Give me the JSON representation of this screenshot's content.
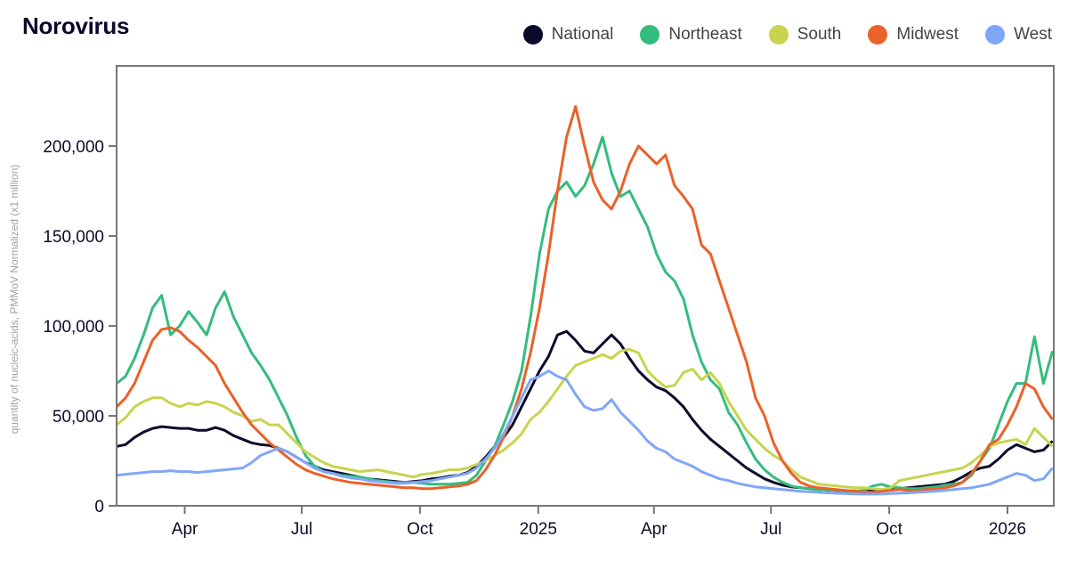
{
  "title": "Norovirus",
  "legend": [
    {
      "name": "National",
      "color": "#0b0a2a"
    },
    {
      "name": "Northeast",
      "color": "#33bd7d"
    },
    {
      "name": "South",
      "color": "#c8d44e"
    },
    {
      "name": "Midwest",
      "color": "#ea6129"
    },
    {
      "name": "West",
      "color": "#7fa7f8"
    }
  ],
  "chart_data": {
    "type": "line",
    "title": "Norovirus",
    "xlabel": "",
    "ylabel": "quantity of nucleic-acids, PMMoV Normalized (x1 million)",
    "xlim": [
      "2024-02-08",
      "2026-02-06"
    ],
    "ylim": [
      0,
      240000
    ],
    "y_ticks": [
      0,
      50000,
      100000,
      150000,
      200000
    ],
    "y_tick_labels": [
      "0",
      "50,000",
      "100,000",
      "150,000",
      "200,000"
    ],
    "x_ticks": [
      "2024-04-01",
      "2024-07-01",
      "2024-10-01",
      "2025-01-01",
      "2025-04-01",
      "2025-07-01",
      "2025-10-01",
      "2026-01-01"
    ],
    "x_tick_labels": [
      "Apr",
      "Jul",
      "Oct",
      "2025",
      "Apr",
      "Jul",
      "Oct",
      "2026"
    ],
    "grid": false,
    "legend_position": "top-right",
    "x_unit": "week starting 2024-02-08, step 7 days",
    "series": [
      {
        "name": "National",
        "color": "#0b0a2a",
        "values": [
          33000,
          34000,
          38000,
          41000,
          43000,
          44000,
          43500,
          43000,
          43000,
          42000,
          42000,
          43500,
          42000,
          39000,
          37000,
          35000,
          34000,
          33500,
          32000,
          30000,
          27000,
          24000,
          22000,
          20000,
          19000,
          18000,
          17000,
          16000,
          15000,
          14500,
          14000,
          13500,
          13000,
          13500,
          14000,
          15000,
          15500,
          16500,
          17000,
          18500,
          22000,
          27000,
          33000,
          38000,
          45000,
          55000,
          65000,
          75000,
          83000,
          95000,
          97000,
          92000,
          86000,
          85000,
          90000,
          95000,
          90000,
          82000,
          75000,
          70000,
          66000,
          64000,
          60000,
          55000,
          48000,
          42000,
          37000,
          33000,
          29000,
          25000,
          21000,
          18000,
          15000,
          13000,
          11500,
          10500,
          10000,
          9500,
          9000,
          8800,
          8500,
          8300,
          8200,
          8000,
          8200,
          8500,
          9000,
          9500,
          10000,
          10500,
          11000,
          11500,
          12000,
          13500,
          16000,
          19000,
          21000,
          22000,
          26000,
          31000,
          34000,
          32000,
          30000,
          31000,
          36000
        ]
      },
      {
        "name": "Northeast",
        "color": "#33bd7d",
        "values": [
          68000,
          72000,
          82000,
          95000,
          110000,
          117000,
          95000,
          100000,
          108000,
          102000,
          95000,
          110000,
          119000,
          105000,
          95000,
          85000,
          78000,
          70000,
          60000,
          50000,
          38000,
          28000,
          22000,
          19000,
          18000,
          17000,
          16500,
          16000,
          15000,
          14000,
          13500,
          13000,
          13000,
          13000,
          12500,
          12000,
          12000,
          12000,
          12500,
          13000,
          17000,
          25000,
          33000,
          45000,
          58000,
          75000,
          105000,
          140000,
          165000,
          175000,
          180000,
          172000,
          178000,
          190000,
          205000,
          185000,
          172000,
          175000,
          165000,
          155000,
          140000,
          130000,
          125000,
          115000,
          95000,
          80000,
          70000,
          65000,
          52000,
          45000,
          35000,
          26000,
          20000,
          16000,
          13000,
          11000,
          10000,
          9500,
          9000,
          8800,
          8500,
          8200,
          8000,
          8500,
          11000,
          12000,
          10500,
          10000,
          9500,
          9500,
          10000,
          10500,
          11500,
          12000,
          13000,
          17000,
          25000,
          32000,
          45000,
          58000,
          68000,
          68000,
          94000,
          68000,
          86000
        ]
      },
      {
        "name": "South",
        "color": "#c8d44e",
        "values": [
          45000,
          49000,
          55000,
          58000,
          60000,
          60000,
          57000,
          55000,
          57000,
          56000,
          58000,
          57000,
          55000,
          52000,
          50000,
          47000,
          48000,
          45000,
          45000,
          40000,
          35000,
          30000,
          27000,
          24000,
          22000,
          21000,
          20000,
          19000,
          19500,
          20000,
          19000,
          18000,
          17000,
          16000,
          17500,
          18000,
          19000,
          20000,
          20000,
          21000,
          23000,
          25000,
          28000,
          31000,
          35000,
          40000,
          48000,
          52000,
          58000,
          65000,
          72000,
          78000,
          80000,
          82000,
          84000,
          82000,
          86000,
          87000,
          85000,
          75000,
          70000,
          66000,
          67000,
          74000,
          76000,
          70000,
          74000,
          68000,
          58000,
          50000,
          42000,
          37000,
          32000,
          28000,
          25000,
          20000,
          16000,
          14000,
          12000,
          11500,
          11000,
          10500,
          10000,
          10000,
          9500,
          9000,
          10000,
          14000,
          15000,
          16000,
          17000,
          18000,
          19000,
          20000,
          21000,
          24000,
          28000,
          33000,
          35000,
          36000,
          37000,
          34000,
          43000,
          38000,
          33000
        ]
      },
      {
        "name": "Midwest",
        "color": "#ea6129",
        "values": [
          55000,
          60000,
          68000,
          80000,
          92000,
          98000,
          99000,
          97000,
          92000,
          88000,
          83000,
          78000,
          68000,
          60000,
          52000,
          45000,
          40000,
          35000,
          31000,
          27000,
          23000,
          20000,
          18000,
          16500,
          15000,
          14000,
          13000,
          12500,
          12000,
          11500,
          11000,
          10500,
          10000,
          10000,
          9500,
          9500,
          10000,
          10500,
          11000,
          12000,
          14000,
          20000,
          28000,
          38000,
          50000,
          65000,
          85000,
          110000,
          140000,
          175000,
          205000,
          222000,
          200000,
          180000,
          170000,
          165000,
          175000,
          190000,
          200000,
          195000,
          190000,
          195000,
          178000,
          172000,
          165000,
          145000,
          140000,
          125000,
          110000,
          95000,
          80000,
          60000,
          50000,
          35000,
          25000,
          18000,
          13000,
          11000,
          10000,
          9500,
          9000,
          8500,
          8000,
          7800,
          7500,
          8000,
          8500,
          9000,
          8500,
          8500,
          9000,
          9500,
          10000,
          11000,
          13000,
          18000,
          25000,
          34000,
          37000,
          45000,
          55000,
          68000,
          65000,
          55000,
          48000
        ]
      },
      {
        "name": "West",
        "color": "#7fa7f8",
        "values": [
          17000,
          17500,
          18000,
          18500,
          19000,
          19000,
          19500,
          19000,
          19000,
          18500,
          19000,
          19500,
          20000,
          20500,
          21000,
          24000,
          28000,
          30000,
          32000,
          30000,
          27000,
          24000,
          21000,
          19000,
          18000,
          16500,
          15500,
          15000,
          14000,
          13500,
          13000,
          12500,
          12500,
          13000,
          13500,
          14000,
          15000,
          16000,
          17000,
          18000,
          21000,
          26000,
          32000,
          40000,
          50000,
          60000,
          70000,
          72000,
          75000,
          72000,
          70000,
          62000,
          55000,
          53000,
          54000,
          59000,
          52000,
          47000,
          42000,
          36000,
          32000,
          30000,
          26000,
          24000,
          22000,
          19000,
          17000,
          15000,
          14000,
          12500,
          11500,
          10500,
          10000,
          9500,
          9000,
          8500,
          8000,
          7800,
          7500,
          7200,
          7000,
          6800,
          6600,
          6500,
          6500,
          6500,
          6800,
          7000,
          7200,
          7500,
          7800,
          8000,
          8500,
          9000,
          9500,
          10000,
          11000,
          12000,
          14000,
          16000,
          18000,
          17000,
          14000,
          15000,
          21000
        ]
      }
    ]
  }
}
